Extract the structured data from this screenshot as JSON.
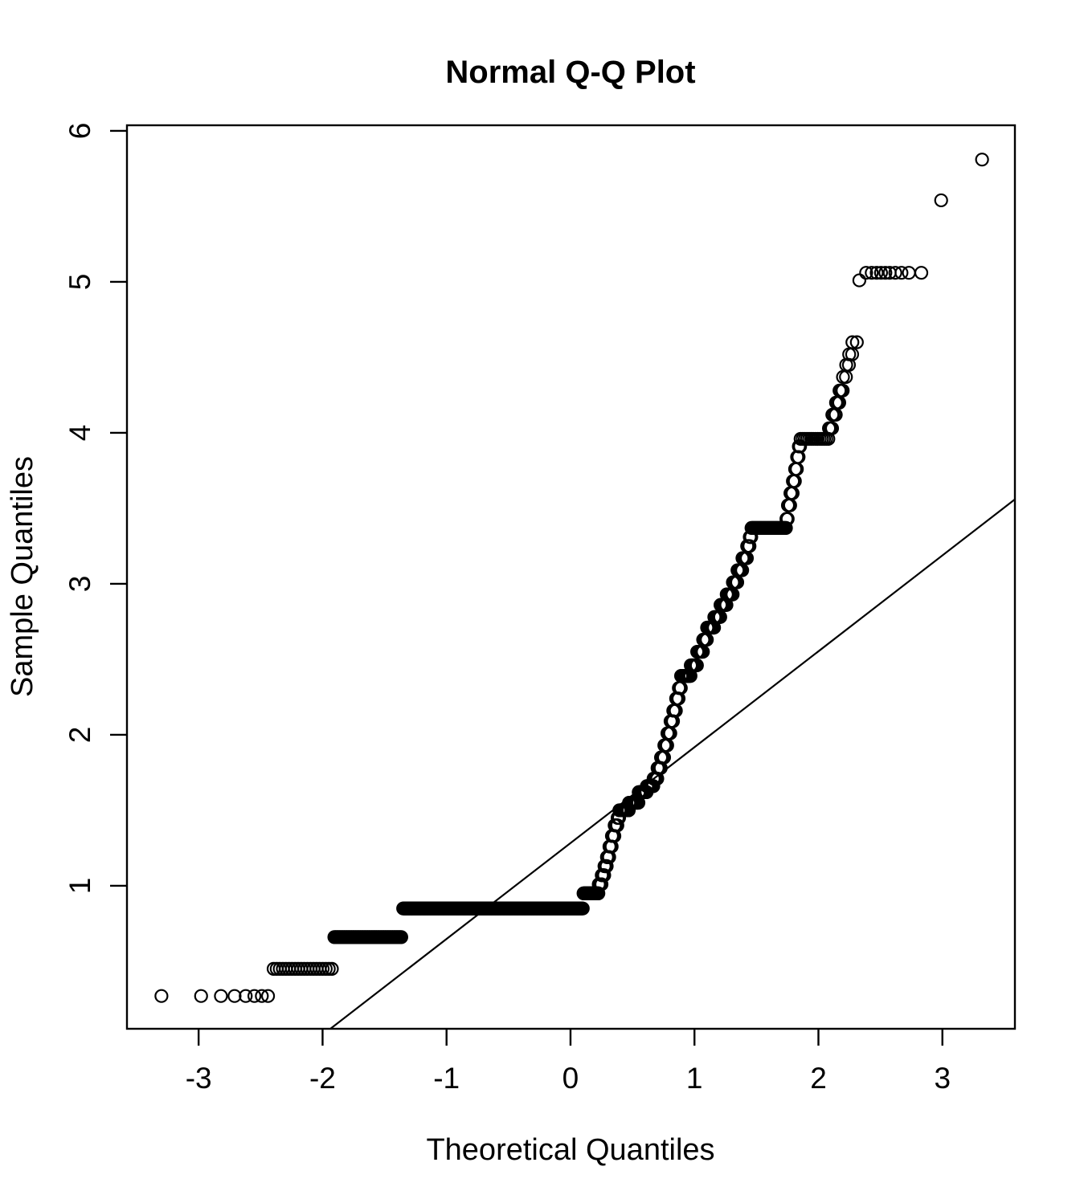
{
  "chart_data": {
    "type": "scatter",
    "title": "Normal Q-Q Plot",
    "xlabel": "Theoretical Quantiles",
    "ylabel": "Sample Quantiles",
    "xlim": [
      -3.578,
      3.585
    ],
    "ylim": [
      0.053,
      6.037
    ],
    "x_ticks": [
      -3,
      -2,
      -1,
      0,
      1,
      2,
      3
    ],
    "y_ticks": [
      1,
      2,
      3,
      4,
      5,
      6
    ],
    "grid": false,
    "legend": "none",
    "colors": {
      "points": "#000000",
      "line": "#000000",
      "frame": "#000000",
      "background": "#ffffff"
    },
    "point_style": {
      "shape": "open-circle",
      "radius_px": 7.5,
      "stroke_px": 2.2
    },
    "reference_line": {
      "slope": 0.635,
      "intercept": 1.283
    },
    "points": [
      [
        -3.3,
        0.27
      ],
      [
        -2.98,
        0.27
      ],
      [
        -2.82,
        0.27
      ],
      [
        -2.71,
        0.27
      ],
      [
        -2.62,
        0.27
      ],
      [
        -2.55,
        0.27
      ],
      [
        -2.49,
        0.27
      ],
      [
        -2.44,
        0.27
      ],
      [
        2.33,
        5.01
      ],
      [
        2.385,
        5.06
      ],
      [
        2.43,
        5.06
      ],
      [
        2.47,
        5.06
      ],
      [
        2.505,
        5.06
      ],
      [
        2.54,
        5.06
      ],
      [
        2.575,
        5.06
      ],
      [
        2.62,
        5.06
      ],
      [
        2.67,
        5.06
      ],
      [
        2.73,
        5.06
      ],
      [
        2.83,
        5.06
      ],
      [
        2.99,
        5.54
      ],
      [
        3.32,
        5.81
      ]
    ],
    "tie_bands": [
      {
        "y": 0.45,
        "x0": -2.395,
        "x1": -1.925,
        "n": 20
      },
      {
        "y": 0.66,
        "x0": -1.905,
        "x1": -1.365,
        "n": 55
      },
      {
        "y": 0.85,
        "x0": -1.35,
        "x1": 0.099,
        "n": 290
      },
      {
        "y": 0.95,
        "x0": 0.105,
        "x1": 0.225,
        "n": 30
      },
      {
        "y": 1.01,
        "x0": 0.228,
        "x1": 0.25,
        "n": 6
      },
      {
        "y": 1.07,
        "x0": 0.252,
        "x1": 0.272,
        "n": 6
      },
      {
        "y": 1.13,
        "x0": 0.274,
        "x1": 0.292,
        "n": 6
      },
      {
        "y": 1.19,
        "x0": 0.294,
        "x1": 0.312,
        "n": 6
      },
      {
        "y": 1.26,
        "x0": 0.314,
        "x1": 0.332,
        "n": 6
      },
      {
        "y": 1.33,
        "x0": 0.334,
        "x1": 0.354,
        "n": 6
      },
      {
        "y": 1.4,
        "x0": 0.356,
        "x1": 0.378,
        "n": 6
      },
      {
        "y": 1.45,
        "x0": 0.38,
        "x1": 0.392,
        "n": 4
      },
      {
        "y": 1.5,
        "x0": 0.394,
        "x1": 0.47,
        "n": 20
      },
      {
        "y": 1.55,
        "x0": 0.472,
        "x1": 0.548,
        "n": 20
      },
      {
        "y": 1.62,
        "x0": 0.55,
        "x1": 0.614,
        "n": 16
      },
      {
        "y": 1.66,
        "x0": 0.616,
        "x1": 0.668,
        "n": 14
      },
      {
        "y": 1.71,
        "x0": 0.67,
        "x1": 0.7,
        "n": 8
      },
      {
        "y": 1.78,
        "x0": 0.702,
        "x1": 0.728,
        "n": 7
      },
      {
        "y": 1.85,
        "x0": 0.73,
        "x1": 0.755,
        "n": 7
      },
      {
        "y": 1.93,
        "x0": 0.757,
        "x1": 0.78,
        "n": 6
      },
      {
        "y": 2.01,
        "x0": 0.782,
        "x1": 0.805,
        "n": 6
      },
      {
        "y": 2.09,
        "x0": 0.807,
        "x1": 0.827,
        "n": 6
      },
      {
        "y": 2.16,
        "x0": 0.829,
        "x1": 0.85,
        "n": 6
      },
      {
        "y": 2.24,
        "x0": 0.852,
        "x1": 0.872,
        "n": 5
      },
      {
        "y": 2.31,
        "x0": 0.874,
        "x1": 0.89,
        "n": 5
      },
      {
        "y": 2.39,
        "x0": 0.892,
        "x1": 0.968,
        "n": 18
      },
      {
        "y": 2.46,
        "x0": 0.97,
        "x1": 1.02,
        "n": 12
      },
      {
        "y": 2.55,
        "x0": 1.022,
        "x1": 1.068,
        "n": 11
      },
      {
        "y": 2.63,
        "x0": 1.07,
        "x1": 1.1,
        "n": 7
      },
      {
        "y": 2.71,
        "x0": 1.102,
        "x1": 1.158,
        "n": 12
      },
      {
        "y": 2.78,
        "x0": 1.16,
        "x1": 1.208,
        "n": 10
      },
      {
        "y": 2.86,
        "x0": 1.21,
        "x1": 1.258,
        "n": 10
      },
      {
        "y": 2.93,
        "x0": 1.26,
        "x1": 1.308,
        "n": 9
      },
      {
        "y": 3.01,
        "x0": 1.31,
        "x1": 1.345,
        "n": 7
      },
      {
        "y": 3.09,
        "x0": 1.347,
        "x1": 1.385,
        "n": 7
      },
      {
        "y": 3.17,
        "x0": 1.387,
        "x1": 1.423,
        "n": 6
      },
      {
        "y": 3.25,
        "x0": 1.425,
        "x1": 1.444,
        "n": 4
      },
      {
        "y": 3.31,
        "x0": 1.446,
        "x1": 1.458,
        "n": 3
      },
      {
        "y": 3.37,
        "x0": 1.46,
        "x1": 1.738,
        "n": 35
      },
      {
        "y": 3.43,
        "x0": 1.742,
        "x1": 1.752,
        "n": 2
      },
      {
        "y": 3.52,
        "x0": 1.754,
        "x1": 1.772,
        "n": 3
      },
      {
        "y": 3.6,
        "x0": 1.774,
        "x1": 1.792,
        "n": 3
      },
      {
        "y": 3.68,
        "x0": 1.794,
        "x1": 1.81,
        "n": 3
      },
      {
        "y": 3.76,
        "x0": 1.812,
        "x1": 1.826,
        "n": 3
      },
      {
        "y": 3.84,
        "x0": 1.828,
        "x1": 1.84,
        "n": 2
      },
      {
        "y": 3.91,
        "x0": 1.842,
        "x1": 1.852,
        "n": 2
      },
      {
        "y": 3.96,
        "x0": 1.856,
        "x1": 2.08,
        "n": 14
      },
      {
        "y": 4.03,
        "x0": 2.085,
        "x1": 2.11,
        "n": 3
      },
      {
        "y": 4.12,
        "x0": 2.112,
        "x1": 2.14,
        "n": 3
      },
      {
        "y": 4.2,
        "x0": 2.142,
        "x1": 2.168,
        "n": 3
      },
      {
        "y": 4.28,
        "x0": 2.17,
        "x1": 2.196,
        "n": 3
      },
      {
        "y": 4.37,
        "x0": 2.198,
        "x1": 2.222,
        "n": 2
      },
      {
        "y": 4.45,
        "x0": 2.224,
        "x1": 2.246,
        "n": 2
      },
      {
        "y": 4.52,
        "x0": 2.248,
        "x1": 2.272,
        "n": 2
      },
      {
        "y": 4.6,
        "x0": 2.274,
        "x1": 2.31,
        "n": 2
      }
    ]
  }
}
